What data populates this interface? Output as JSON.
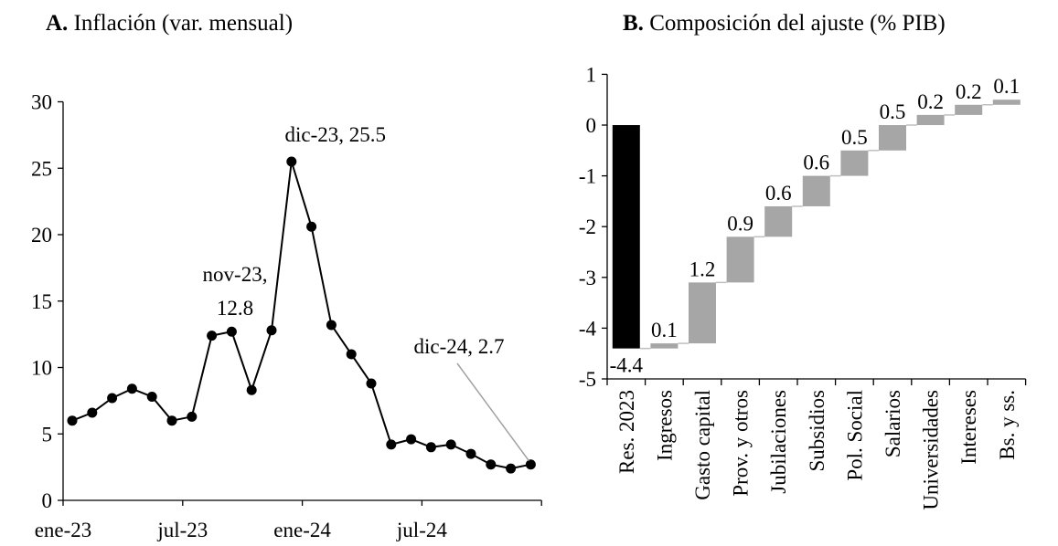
{
  "chart_data": [
    {
      "panel": "A.",
      "title": "Inflación (var. mensual)",
      "type": "line",
      "x": [
        "ene-23",
        "feb-23",
        "mar-23",
        "abr-23",
        "may-23",
        "jun-23",
        "jul-23",
        "ago-23",
        "sep-23",
        "oct-23",
        "nov-23",
        "dic-23",
        "ene-24",
        "feb-24",
        "mar-24",
        "abr-24",
        "may-24",
        "jun-24",
        "jul-24",
        "ago-24",
        "sep-24",
        "oct-24",
        "nov-24",
        "dic-24"
      ],
      "series": [
        {
          "values": [
            6.0,
            6.6,
            7.7,
            8.4,
            7.8,
            6.0,
            6.3,
            12.4,
            12.7,
            8.3,
            12.8,
            25.5,
            20.6,
            13.2,
            11.0,
            8.8,
            4.2,
            4.6,
            4.0,
            4.2,
            3.5,
            2.7,
            2.4,
            2.7
          ]
        }
      ],
      "xticks": [
        "ene-23",
        "jul-23",
        "ene-24",
        "jul-24"
      ],
      "ylim": [
        0,
        30
      ],
      "yticks": [
        "0",
        "5",
        "10",
        "15",
        "20",
        "25",
        "30"
      ],
      "annotations": [
        {
          "lines": [
            "dic-23, 25.5"
          ]
        },
        {
          "lines": [
            "nov-23,",
            "12.8"
          ]
        },
        {
          "lines": [
            "dic-24, 2.7"
          ]
        }
      ],
      "line_color": "#000000",
      "grid": false
    },
    {
      "panel": "B.",
      "title": "Composición del ajuste (% PIB)",
      "type": "bar",
      "subtype": "waterfall",
      "categories": [
        "Res. 2023",
        "Ingresos",
        "Gasto capital",
        "Prov. y otros",
        "Jubilaciones",
        "Subsidios",
        "Pol. Social",
        "Salarios",
        "Universidades",
        "Intereses",
        "Bs. y ss."
      ],
      "values": [
        -4.4,
        0.1,
        1.2,
        0.9,
        0.6,
        0.6,
        0.5,
        0.5,
        0.2,
        0.2,
        0.1
      ],
      "labels": [
        "-4.4",
        "0.1",
        "1.2",
        "0.9",
        "0.6",
        "0.6",
        "0.5",
        "0.5",
        "0.2",
        "0.2",
        "0.1"
      ],
      "ylim": [
        -5,
        1
      ],
      "yticks": [
        "1",
        "0",
        "-1",
        "-2",
        "-3",
        "-4",
        "-5"
      ],
      "colors": {
        "initial": "#000000",
        "step": "#a6a6a6",
        "connector": "#bfbfbf"
      },
      "grid": false
    }
  ]
}
